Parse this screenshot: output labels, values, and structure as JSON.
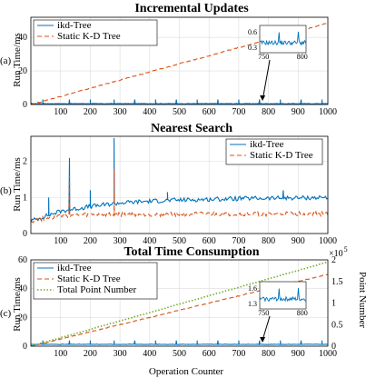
{
  "colors": {
    "ikd": "#0072BD",
    "static": "#D95319",
    "points": "#77AC30"
  },
  "chart_data": [
    {
      "panel_label": "(a)",
      "type": "line",
      "title": "Incremental Updates",
      "xlabel": "",
      "ylabel": "Run Time/ms",
      "xlim": [
        0,
        1000
      ],
      "ylim": [
        0,
        52
      ],
      "xticks": [
        100,
        200,
        300,
        400,
        500,
        600,
        700,
        800,
        900,
        1000
      ],
      "yticks": [
        0,
        20,
        40
      ],
      "grid": true,
      "legend_position": "top-left",
      "series": [
        {
          "name": "ikd-Tree",
          "style": "solid",
          "baseline": 0.5,
          "spikes": [
            [
              40,
              3
            ],
            [
              130,
              3
            ],
            [
              200,
              3
            ],
            [
              280,
              3
            ],
            [
              350,
              3
            ],
            [
              420,
              3
            ],
            [
              490,
              3
            ],
            [
              560,
              3
            ],
            [
              630,
              3
            ],
            [
              700,
              3
            ],
            [
              770,
              3
            ],
            [
              840,
              3
            ],
            [
              910,
              3
            ],
            [
              980,
              3
            ]
          ]
        },
        {
          "name": "Static K-D Tree",
          "style": "dashed",
          "points": [
            [
              0,
              0
            ],
            [
              1000,
              48.5
            ]
          ]
        }
      ],
      "inset": {
        "xticks": [
          750,
          800
        ],
        "yticks": [
          0.3,
          0.6
        ],
        "xlim": [
          745,
          805
        ],
        "ylim": [
          0.2,
          0.72
        ],
        "series": "ikd-Tree"
      },
      "annotation": "arrow pointing to zoomed region near x=780"
    },
    {
      "panel_label": "(b)",
      "type": "line",
      "title": "Nearest Search",
      "xlabel": "",
      "ylabel": "Run Time/ms",
      "xlim": [
        0,
        1000
      ],
      "ylim": [
        0,
        2.7
      ],
      "xticks": [
        100,
        200,
        300,
        400,
        500,
        600,
        700,
        800,
        900,
        1000
      ],
      "yticks": [
        0,
        1,
        2
      ],
      "grid": true,
      "legend_position": "top-right",
      "series": [
        {
          "name": "ikd-Tree",
          "style": "solid",
          "trend": [
            [
              0,
              0.35
            ],
            [
              100,
              0.62
            ],
            [
              200,
              0.75
            ],
            [
              300,
              0.85
            ],
            [
              400,
              0.9
            ],
            [
              500,
              0.93
            ],
            [
              600,
              0.95
            ],
            [
              700,
              0.97
            ],
            [
              800,
              0.98
            ],
            [
              900,
              0.99
            ],
            [
              1000,
              1.0
            ]
          ],
          "spikes": [
            [
              130,
              2.1
            ],
            [
              280,
              2.65
            ],
            [
              60,
              1.0
            ],
            [
              200,
              1.2
            ],
            [
              460,
              1.15
            ],
            [
              850,
              1.2
            ]
          ]
        },
        {
          "name": "Static K-D Tree",
          "style": "dashed",
          "trend": [
            [
              0,
              0.35
            ],
            [
              100,
              0.5
            ],
            [
              200,
              0.52
            ],
            [
              400,
              0.53
            ],
            [
              700,
              0.54
            ],
            [
              1000,
              0.55
            ]
          ],
          "spikes": [
            [
              130,
              1.6
            ],
            [
              280,
              1.8
            ]
          ]
        }
      ]
    },
    {
      "panel_label": "(c)",
      "type": "line",
      "title": "Total Time Consumption",
      "xlabel": "Operation Counter",
      "ylabel": "Run Time/ms",
      "ylabel_right": "Point Number",
      "right_axis_multiplier": "×10",
      "right_axis_exponent": "5",
      "xlim": [
        0,
        1000
      ],
      "ylim": [
        0,
        60
      ],
      "ylim_right": [
        0,
        2
      ],
      "xticks": [
        100,
        200,
        300,
        400,
        500,
        600,
        700,
        800,
        900,
        1000
      ],
      "yticks": [
        0,
        20,
        40,
        60
      ],
      "yticks_right": [
        0,
        0.5,
        1,
        1.5,
        2
      ],
      "grid": true,
      "legend_position": "top-left",
      "series": [
        {
          "name": "ikd-Tree",
          "style": "solid",
          "baseline": 1.3,
          "spikes": [
            [
              40,
              4
            ],
            [
              130,
              4
            ],
            [
              200,
              4
            ],
            [
              280,
              4
            ],
            [
              350,
              4
            ],
            [
              420,
              4
            ],
            [
              490,
              4
            ],
            [
              560,
              4
            ],
            [
              630,
              4
            ],
            [
              700,
              4
            ],
            [
              770,
              4
            ],
            [
              840,
              4
            ],
            [
              910,
              4
            ],
            [
              980,
              4
            ]
          ]
        },
        {
          "name": "Static K-D Tree",
          "style": "dashed",
          "points": [
            [
              0,
              0
            ],
            [
              1000,
              50
            ]
          ]
        },
        {
          "name": "Total Point Number",
          "style": "dotted",
          "axis": "right",
          "points": [
            [
              0,
              0
            ],
            [
              1000,
              1.95
            ]
          ]
        }
      ],
      "inset": {
        "xticks": [
          750,
          800
        ],
        "yticks": [
          1.3,
          1.6
        ],
        "xlim": [
          745,
          805
        ],
        "ylim": [
          1.2,
          1.72
        ],
        "series": "ikd-Tree"
      },
      "annotation": "arrow pointing to zoomed region near x=780"
    }
  ]
}
